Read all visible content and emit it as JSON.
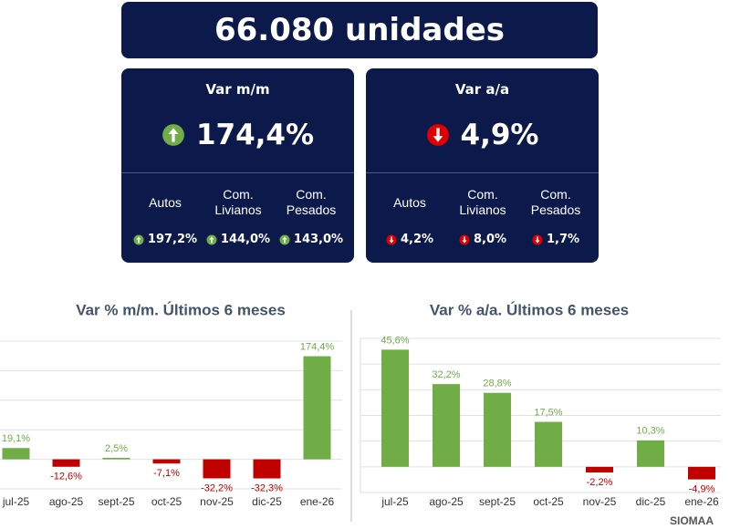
{
  "header": {
    "title": "66.080 unidades"
  },
  "cards": [
    {
      "title": "Var m/m",
      "direction": "up",
      "value": "174,4%",
      "items": [
        {
          "label": "Autos",
          "value": "197,2%"
        },
        {
          "label": "Com. Livianos",
          "value": "144,0%"
        },
        {
          "label": "Com. Pesados",
          "value": "143,0%"
        }
      ]
    },
    {
      "title": "Var a/a",
      "direction": "down",
      "value": "4,9%",
      "items": [
        {
          "label": "Autos",
          "value": "4,2%"
        },
        {
          "label": "Com. Livianos",
          "value": "8,0%"
        },
        {
          "label": "Com. Pesados",
          "value": "1,7%"
        }
      ]
    }
  ],
  "chart_data": [
    {
      "type": "bar",
      "title": "Var % m/m. Últimos 6 meses",
      "categories": [
        "jul-25",
        "ago-25",
        "sept-25",
        "oct-25",
        "nov-25",
        "dic-25",
        "ene-26"
      ],
      "values": [
        19.1,
        -12.6,
        2.5,
        -7.1,
        -32.2,
        -32.3,
        174.4
      ],
      "value_labels": [
        "19,1%",
        "-12,6%",
        "2,5%",
        "-7,1%",
        "-32,2%",
        "-32,3%",
        "174,4%"
      ],
      "color": "#70ad47",
      "negative_color": "#c00000",
      "ylim": [
        -50,
        200
      ],
      "yticks": [
        -50,
        0,
        50,
        100,
        150,
        200
      ],
      "grid": true
    },
    {
      "type": "bar",
      "title": "Var % a/a. Últimos 6 meses",
      "categories": [
        "jul-25",
        "ago-25",
        "sept-25",
        "oct-25",
        "nov-25",
        "dic-25",
        "ene-26"
      ],
      "values": [
        45.6,
        32.2,
        28.8,
        17.5,
        -2.2,
        10.3,
        -4.9
      ],
      "value_labels": [
        "45,6%",
        "32,2%",
        "28,8%",
        "17,5%",
        "-2,2%",
        "10,3%",
        "-4,9%"
      ],
      "color": "#70ad47",
      "negative_color": "#c00000",
      "ylim": [
        -10,
        50
      ],
      "yticks": [
        -10,
        0,
        10,
        20,
        30,
        40,
        50
      ],
      "grid": true
    }
  ],
  "footer": {
    "logo": "SIOMAA"
  }
}
